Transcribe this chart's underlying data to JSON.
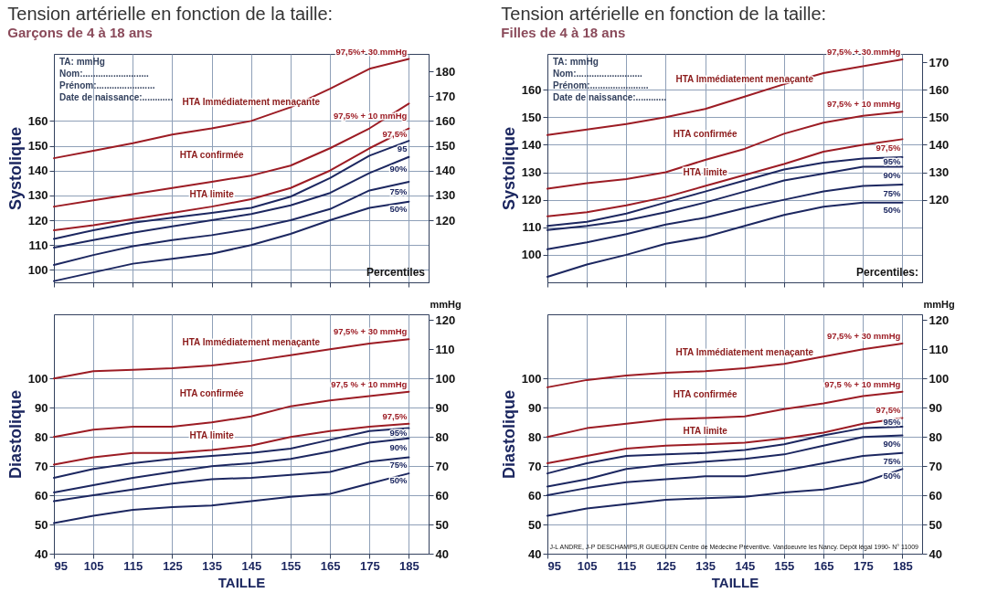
{
  "chart_data": [
    {
      "type": "line",
      "title": "Tension artérielle en fonction de la taille:",
      "subtitle": "Garçons de 4 à 18 ans",
      "ylabel": "Systolique",
      "x": [
        95,
        105,
        115,
        125,
        135,
        145,
        155,
        165,
        175,
        185
      ],
      "xlim": [
        95,
        190
      ],
      "xticks": [
        95,
        105,
        115,
        125,
        135,
        145,
        155,
        165,
        175,
        185
      ],
      "ylim": [
        95,
        187
      ],
      "yticks": [
        100,
        110,
        120,
        130,
        140,
        150,
        160
      ],
      "y2lim": [
        95,
        187
      ],
      "y2ticks": [
        120,
        130,
        140,
        150,
        160,
        170,
        180
      ],
      "tick_labels": "y",
      "grid": true,
      "series": [
        {
          "name": "97,5%+ 30 mmHg",
          "color": "#9c1c24",
          "values": [
            145,
            148,
            151,
            154.5,
            157,
            160,
            165.5,
            173,
            181,
            185
          ]
        },
        {
          "name": "97,5% + 10 mmHg",
          "color": "#9c1c24",
          "values": [
            125.5,
            128,
            130.5,
            133,
            135.5,
            138,
            142,
            149,
            157,
            167
          ]
        },
        {
          "name": "97,5%",
          "color": "#9c1c24",
          "values": [
            116,
            118,
            120.5,
            123,
            125.5,
            128.5,
            133,
            140,
            149,
            157
          ]
        },
        {
          "name": "95",
          "color": "#1c2760",
          "values": [
            112.5,
            116,
            119,
            121,
            123,
            125,
            129.5,
            137,
            146,
            152
          ]
        },
        {
          "name": "90%",
          "color": "#1c2760",
          "values": [
            109,
            112,
            115,
            117.5,
            120,
            122.5,
            126,
            131,
            139,
            145.5
          ]
        },
        {
          "name": "75%",
          "color": "#1c2760",
          "values": [
            102,
            106,
            109.5,
            112,
            114,
            116.5,
            120,
            124.5,
            132,
            135.5
          ]
        },
        {
          "name": "50%",
          "color": "#1c2760",
          "values": [
            95.5,
            99,
            102.5,
            104.5,
            106.5,
            110,
            114.5,
            120,
            125,
            127.5
          ]
        }
      ],
      "annotations": [
        "HTA Immédiatement menaçante",
        "HTA confirmée",
        "HTA limite",
        "TA: mmHg",
        "Nom:..........................",
        "Prénom:.......................",
        "Date de naissance:............",
        "Percentiles"
      ]
    },
    {
      "type": "line",
      "xlabel": "TAILLE",
      "ylabel": "Diastolique",
      "y2label": "mmHg",
      "x": [
        95,
        105,
        115,
        125,
        135,
        145,
        155,
        165,
        175,
        185
      ],
      "xlim": [
        95,
        190
      ],
      "xticks": [
        95,
        105,
        115,
        125,
        135,
        145,
        155,
        165,
        175,
        185
      ],
      "ylim": [
        40,
        122
      ],
      "yticks": [
        40,
        50,
        60,
        70,
        80,
        90,
        100
      ],
      "y2lim": [
        40,
        122
      ],
      "y2ticks": [
        40,
        50,
        60,
        70,
        80,
        90,
        100,
        110,
        120
      ],
      "grid": true,
      "series": [
        {
          "name": "97,5% + 30 mmHg",
          "color": "#9c1c24",
          "values": [
            100,
            102.5,
            103,
            103.5,
            104.5,
            106,
            108,
            110,
            112,
            113.5
          ]
        },
        {
          "name": "97,5 % + 10 mmHg",
          "color": "#9c1c24",
          "values": [
            80,
            82.5,
            83.5,
            83.5,
            85,
            87,
            90.5,
            92.5,
            94,
            95.5
          ]
        },
        {
          "name": "97,5%",
          "color": "#9c1c24",
          "values": [
            70.5,
            73,
            74.5,
            74.5,
            75.5,
            77,
            80,
            82,
            83.5,
            84.5
          ]
        },
        {
          "name": "95%",
          "color": "#1c2760",
          "values": [
            66,
            69,
            71,
            72.5,
            73.5,
            74.5,
            76,
            79,
            82,
            83
          ]
        },
        {
          "name": "90%",
          "color": "#1c2760",
          "values": [
            61,
            63.5,
            66,
            68,
            70,
            71,
            72.5,
            75,
            78,
            79.5
          ]
        },
        {
          "name": "75%",
          "color": "#1c2760",
          "values": [
            58,
            60,
            62,
            64,
            65.5,
            66,
            67,
            68,
            71.5,
            73
          ]
        },
        {
          "name": "50%",
          "color": "#1c2760",
          "values": [
            50.5,
            53,
            55,
            56,
            56.5,
            58,
            59.5,
            60.5,
            64,
            67.5
          ]
        }
      ],
      "annotations": [
        "HTA Immédiatement menaçante",
        "HTA confirmée",
        "HTA limite"
      ]
    },
    {
      "type": "line",
      "title": "Tension artérielle en fonction de la taille:",
      "subtitle": "Filles de 4 à 18 ans",
      "ylabel": "Systolique",
      "x": [
        95,
        105,
        115,
        125,
        135,
        145,
        155,
        165,
        175,
        185
      ],
      "xlim": [
        95,
        190
      ],
      "xticks": [
        95,
        105,
        115,
        125,
        135,
        145,
        155,
        165,
        175,
        185
      ],
      "ylim": [
        90,
        173
      ],
      "yticks": [
        100,
        110,
        120,
        130,
        140,
        150,
        160
      ],
      "y2lim": [
        90,
        173
      ],
      "y2ticks": [
        120,
        130,
        140,
        150,
        160,
        170
      ],
      "tick_labels": "y",
      "grid": true,
      "series": [
        {
          "name": "97,5% + 30 mmHg",
          "color": "#9c1c24",
          "values": [
            143.5,
            145.5,
            147.5,
            150,
            153,
            157.5,
            162,
            166,
            168.5,
            171
          ]
        },
        {
          "name": "97,5% + 10 mmHg",
          "color": "#9c1c24",
          "values": [
            124,
            126,
            127.5,
            130,
            134.5,
            138.5,
            144,
            148,
            150.5,
            152
          ]
        },
        {
          "name": "97,5%",
          "color": "#9c1c24",
          "values": [
            114,
            115.5,
            118,
            121,
            125,
            129,
            133,
            137.5,
            140,
            142
          ]
        },
        {
          "name": "95%",
          "color": "#1c2760",
          "values": [
            110.5,
            112,
            115,
            119,
            123,
            127,
            131,
            133.5,
            135,
            135.5
          ]
        },
        {
          "name": "90%",
          "color": "#1c2760",
          "values": [
            109,
            110.5,
            112.5,
            115.5,
            119,
            123,
            127,
            129.5,
            132,
            132
          ]
        },
        {
          "name": "75%",
          "color": "#1c2760",
          "values": [
            102,
            104.5,
            107.5,
            111,
            113.5,
            117,
            120,
            123,
            125,
            125.5
          ]
        },
        {
          "name": "50%",
          "color": "#1c2760",
          "values": [
            92,
            96.5,
            100,
            104,
            106.5,
            110.5,
            114.5,
            117.5,
            119,
            119
          ]
        }
      ],
      "annotations": [
        "HTA Immédiatement menaçante",
        "HTA confirmée",
        "HTA limite",
        "TA: mmHg",
        "Nom:..........................",
        "Prénom:.......................",
        "Date de naissance:............",
        "Percentiles:"
      ]
    },
    {
      "type": "line",
      "xlabel": "TAILLE",
      "ylabel": "Diastolique",
      "y2label": "mmHg",
      "x": [
        95,
        105,
        115,
        125,
        135,
        145,
        155,
        165,
        175,
        185
      ],
      "xlim": [
        95,
        190
      ],
      "xticks": [
        95,
        105,
        115,
        125,
        135,
        145,
        155,
        165,
        175,
        185
      ],
      "ylim": [
        40,
        122
      ],
      "yticks": [
        40,
        50,
        60,
        70,
        80,
        90,
        100
      ],
      "y2lim": [
        40,
        122
      ],
      "y2ticks": [
        40,
        50,
        60,
        70,
        80,
        90,
        100,
        110,
        120
      ],
      "grid": true,
      "series": [
        {
          "name": "97,5% + 30 mmHg",
          "color": "#9c1c24",
          "values": [
            97,
            99.5,
            101,
            102,
            102.5,
            103.5,
            105,
            107.5,
            110,
            112
          ]
        },
        {
          "name": "97,5 % + 10 mmHg",
          "color": "#9c1c24",
          "values": [
            80,
            83,
            84.5,
            86,
            86.5,
            87,
            89.5,
            91.5,
            94,
            95.5
          ]
        },
        {
          "name": "97,5%",
          "color": "#9c1c24",
          "values": [
            71,
            73.5,
            76,
            77,
            77.5,
            78,
            79.5,
            81.5,
            84.5,
            86.5
          ]
        },
        {
          "name": "95%",
          "color": "#1c2760",
          "values": [
            67.5,
            71,
            73.5,
            74,
            74.5,
            75.5,
            77.5,
            80.5,
            83,
            83.5
          ]
        },
        {
          "name": "90%",
          "color": "#1c2760",
          "values": [
            63,
            65.5,
            69,
            70.5,
            71.5,
            72.5,
            74,
            77,
            80,
            80.5
          ]
        },
        {
          "name": "75%",
          "color": "#1c2760",
          "values": [
            60,
            62.5,
            64.5,
            65.5,
            66.5,
            66.5,
            68.5,
            71,
            73.5,
            74.5
          ]
        },
        {
          "name": "50%",
          "color": "#1c2760",
          "values": [
            53,
            55.5,
            57,
            58.5,
            59,
            59.5,
            61,
            62,
            64.5,
            69
          ]
        }
      ],
      "annotations": [
        "HTA Immédiatement menaçante",
        "HTA confirmée",
        "HTA limite",
        "J-L ANDRE, J-P DESCHAMPS,R GUEGUEN Centre de Médecine Préventive. Vandoeuvre les Nancy. Dépôt légal 1990- N° 11009"
      ]
    }
  ]
}
